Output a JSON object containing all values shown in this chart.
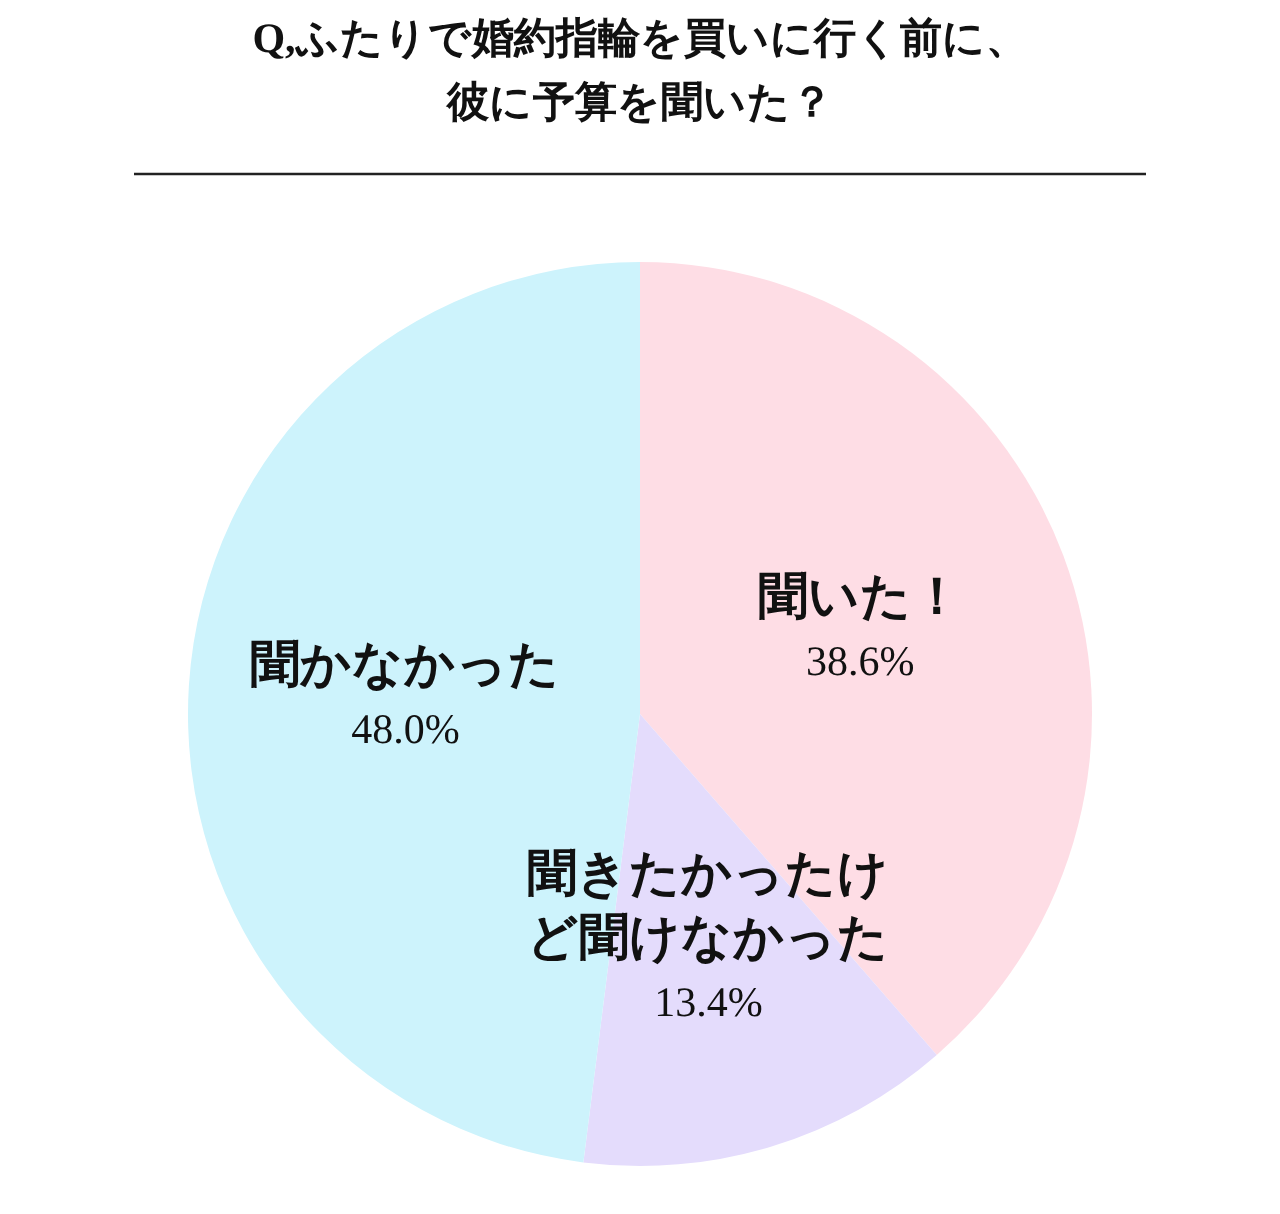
{
  "chart_data": {
    "type": "pie",
    "title": "Q,ふたりで婚約指輪を買いに行く前に、彼に予算を聞いた？",
    "categories": [
      "聞いた！",
      "聞きたかったけど聞けなかった",
      "聞かなかった"
    ],
    "values": [
      38.6,
      13.4,
      48.0
    ],
    "value_labels": [
      "38.6%",
      "13.4%",
      "48.0%"
    ],
    "colors": [
      "#fedde5",
      "#e4dcfc",
      "#cdf3fc"
    ]
  }
}
